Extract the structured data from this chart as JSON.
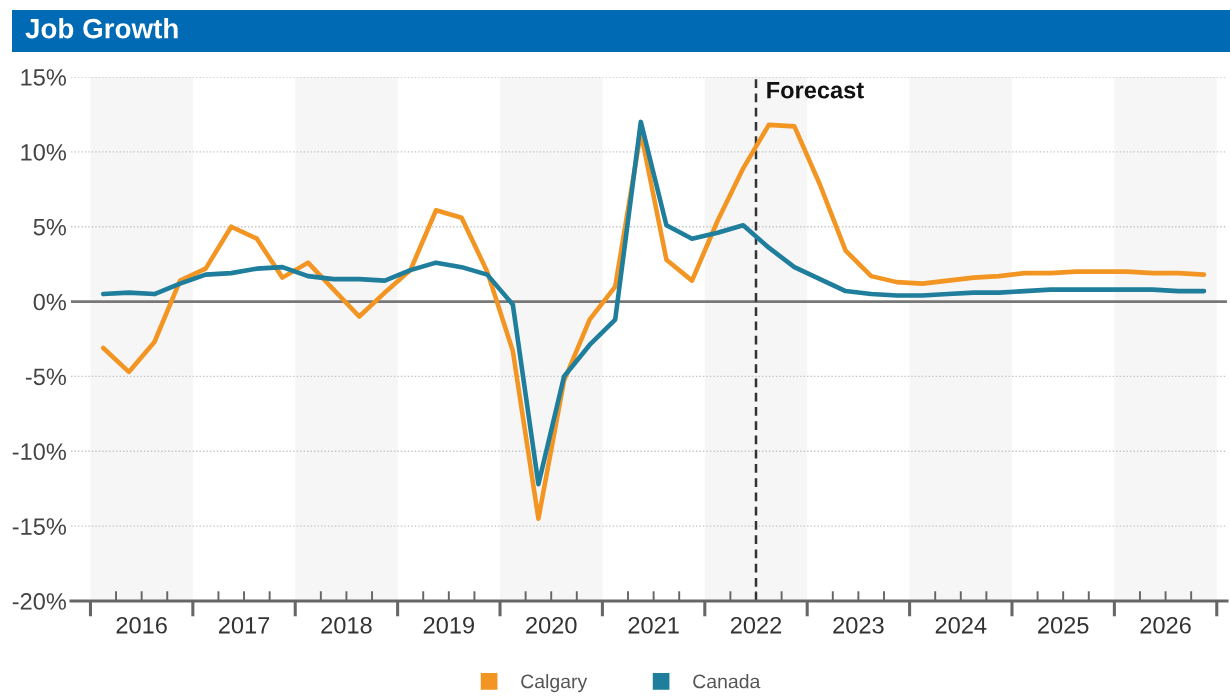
{
  "chart_data": {
    "type": "line",
    "title": "Job Growth",
    "x": [
      2016.125,
      2016.375,
      2016.625,
      2016.875,
      2017.125,
      2017.375,
      2017.625,
      2017.875,
      2018.125,
      2018.375,
      2018.625,
      2018.875,
      2019.125,
      2019.375,
      2019.625,
      2019.875,
      2020.125,
      2020.375,
      2020.625,
      2020.875,
      2021.125,
      2021.375,
      2021.625,
      2021.875,
      2022.125,
      2022.375,
      2022.625,
      2022.875,
      2023.125,
      2023.375,
      2023.625,
      2023.875,
      2024.125,
      2024.375,
      2024.625,
      2024.875,
      2025.125,
      2025.375,
      2025.625,
      2025.875,
      2026.125,
      2026.375,
      2026.625,
      2026.875
    ],
    "series": [
      {
        "name": "Calgary",
        "color": "#f39523",
        "values": [
          -3.1,
          -4.7,
          -2.7,
          1.4,
          2.2,
          5.0,
          4.2,
          1.6,
          2.6,
          0.8,
          -1.0,
          0.6,
          2.1,
          6.1,
          5.6,
          2.0,
          -3.3,
          -14.5,
          -5.3,
          -1.2,
          1.0,
          11.3,
          2.8,
          1.4,
          5.4,
          8.9,
          11.8,
          11.7,
          7.8,
          3.4,
          1.7,
          1.3,
          1.2,
          1.4,
          1.6,
          1.7,
          1.9,
          1.9,
          2.0,
          2.0,
          2.0,
          1.9,
          1.9,
          1.8
        ]
      },
      {
        "name": "Canada",
        "color": "#1e7e9c",
        "values": [
          0.5,
          0.6,
          0.5,
          1.2,
          1.8,
          1.9,
          2.2,
          2.3,
          1.7,
          1.5,
          1.5,
          1.4,
          2.1,
          2.6,
          2.3,
          1.8,
          -0.2,
          -12.2,
          -5.0,
          -2.9,
          -1.2,
          12.0,
          5.1,
          4.2,
          4.6,
          5.1,
          3.6,
          2.3,
          1.5,
          0.7,
          0.5,
          0.4,
          0.4,
          0.5,
          0.6,
          0.6,
          0.7,
          0.8,
          0.8,
          0.8,
          0.8,
          0.8,
          0.7,
          0.7
        ]
      }
    ],
    "xlim": [
      2015.81,
      2027.1
    ],
    "ylim": [
      -20,
      15
    ],
    "xticks": [
      {
        "value": 2016,
        "label": null
      },
      {
        "value": 2016.25,
        "label": null
      },
      {
        "value": 2016.5,
        "label": "2016"
      },
      {
        "value": 2016.75,
        "label": null
      },
      {
        "value": 2017,
        "label": null
      },
      {
        "value": 2017.25,
        "label": null
      },
      {
        "value": 2017.5,
        "label": "2017"
      },
      {
        "value": 2017.75,
        "label": null
      },
      {
        "value": 2018,
        "label": null
      },
      {
        "value": 2018.25,
        "label": null
      },
      {
        "value": 2018.5,
        "label": "2018"
      },
      {
        "value": 2018.75,
        "label": null
      },
      {
        "value": 2019,
        "label": null
      },
      {
        "value": 2019.25,
        "label": null
      },
      {
        "value": 2019.5,
        "label": "2019"
      },
      {
        "value": 2019.75,
        "label": null
      },
      {
        "value": 2020,
        "label": null
      },
      {
        "value": 2020.25,
        "label": null
      },
      {
        "value": 2020.5,
        "label": "2020"
      },
      {
        "value": 2020.75,
        "label": null
      },
      {
        "value": 2021,
        "label": null
      },
      {
        "value": 2021.25,
        "label": null
      },
      {
        "value": 2021.5,
        "label": "2021"
      },
      {
        "value": 2021.75,
        "label": null
      },
      {
        "value": 2022,
        "label": null
      },
      {
        "value": 2022.25,
        "label": null
      },
      {
        "value": 2022.5,
        "label": "2022"
      },
      {
        "value": 2022.75,
        "label": null
      },
      {
        "value": 2023,
        "label": null
      },
      {
        "value": 2023.25,
        "label": null
      },
      {
        "value": 2023.5,
        "label": "2023"
      },
      {
        "value": 2023.75,
        "label": null
      },
      {
        "value": 2024,
        "label": null
      },
      {
        "value": 2024.25,
        "label": null
      },
      {
        "value": 2024.5,
        "label": "2024"
      },
      {
        "value": 2024.75,
        "label": null
      },
      {
        "value": 2025,
        "label": null
      },
      {
        "value": 2025.25,
        "label": null
      },
      {
        "value": 2025.5,
        "label": "2025"
      },
      {
        "value": 2025.75,
        "label": null
      },
      {
        "value": 2026,
        "label": null
      },
      {
        "value": 2026.25,
        "label": null
      },
      {
        "value": 2026.5,
        "label": "2026"
      },
      {
        "value": 2026.75,
        "label": null
      },
      {
        "value": 2027,
        "label": null
      }
    ],
    "yticks": [
      {
        "value": 15,
        "label": "15%"
      },
      {
        "value": 10,
        "label": "10%"
      },
      {
        "value": 5,
        "label": "5%"
      },
      {
        "value": 0,
        "label": "0%"
      },
      {
        "value": -5,
        "label": "-5%"
      },
      {
        "value": -10,
        "label": "-10%"
      },
      {
        "value": -15,
        "label": "-15%"
      },
      {
        "value": -20,
        "label": "-20%"
      }
    ],
    "grid": "y",
    "legend": "bottom",
    "bands": [
      {
        "axis": "x",
        "from": 2016,
        "to": 2017,
        "color": "#f6f6f6"
      },
      {
        "axis": "x",
        "from": 2018,
        "to": 2019,
        "color": "#f6f6f6"
      },
      {
        "axis": "x",
        "from": 2020,
        "to": 2021,
        "color": "#f6f6f6"
      },
      {
        "axis": "x",
        "from": 2022,
        "to": 2023,
        "color": "#f6f6f6"
      },
      {
        "axis": "x",
        "from": 2024,
        "to": 2025,
        "color": "#f6f6f6"
      },
      {
        "axis": "x",
        "from": 2026,
        "to": 2027,
        "color": "#f6f6f6"
      }
    ],
    "ref_lines": [
      {
        "axis": "y",
        "value": 0,
        "color": "#777777",
        "line_style": "solid"
      },
      {
        "axis": "x",
        "value": 2022.5,
        "label": "Forecast",
        "color": "#333333",
        "line_style": "dashed"
      }
    ]
  }
}
